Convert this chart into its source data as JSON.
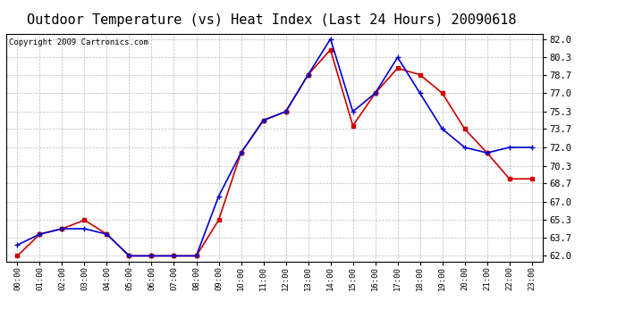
{
  "title": "Outdoor Temperature (vs) Heat Index (Last 24 Hours) 20090618",
  "copyright": "Copyright 2009 Cartronics.com",
  "x_labels": [
    "00:00",
    "01:00",
    "02:00",
    "03:00",
    "04:00",
    "05:00",
    "06:00",
    "07:00",
    "08:00",
    "09:00",
    "10:00",
    "11:00",
    "12:00",
    "13:00",
    "14:00",
    "15:00",
    "16:00",
    "17:00",
    "18:00",
    "19:00",
    "20:00",
    "21:00",
    "22:00",
    "23:00"
  ],
  "outdoor_temp": [
    62.0,
    64.0,
    64.5,
    65.3,
    64.0,
    62.0,
    62.0,
    62.0,
    62.0,
    65.3,
    71.5,
    74.5,
    75.3,
    78.7,
    81.0,
    74.0,
    77.0,
    79.3,
    78.7,
    77.0,
    73.7,
    71.5,
    69.1,
    69.1
  ],
  "heat_index": [
    63.0,
    64.0,
    64.5,
    64.5,
    64.0,
    62.0,
    62.0,
    62.0,
    62.0,
    67.5,
    71.5,
    74.5,
    75.3,
    78.7,
    82.0,
    75.3,
    77.0,
    80.3,
    77.0,
    73.7,
    72.0,
    71.5,
    72.0,
    72.0
  ],
  "temp_color": "#cc0000",
  "heat_color": "#0000cc",
  "y_ticks": [
    62.0,
    63.7,
    65.3,
    67.0,
    68.7,
    70.3,
    72.0,
    73.7,
    75.3,
    77.0,
    78.7,
    80.3,
    82.0
  ],
  "ylim": [
    61.5,
    82.5
  ],
  "bg_color": "#ffffff",
  "plot_bg_color": "#ffffff",
  "grid_color": "#bbbbbb",
  "title_fontsize": 11,
  "copyright_fontsize": 6.5
}
